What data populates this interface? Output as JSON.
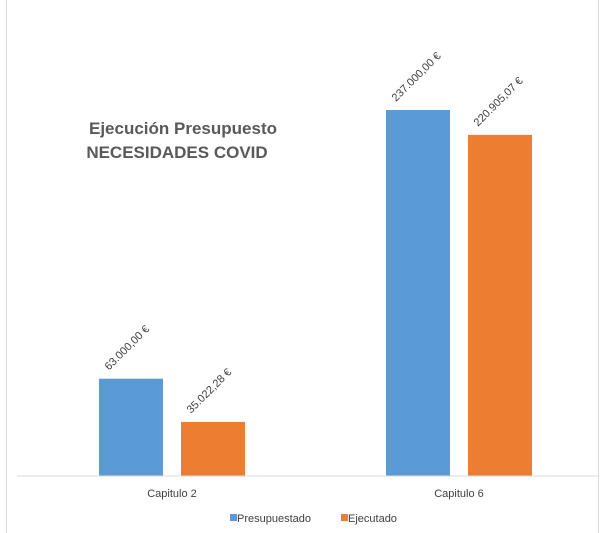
{
  "chart_data": {
    "type": "bar",
    "title_lines": [
      "Ejecución Presupuesto",
      "NECESIDADES COVID"
    ],
    "categories": [
      "Capitulo 2",
      "Capitulo 6"
    ],
    "series": [
      {
        "name": "Presupuestado",
        "color": "#5b9bd5",
        "values": [
          63000.0,
          237000.0
        ],
        "labels": [
          "63.000,00 €",
          "237.000,00 €"
        ]
      },
      {
        "name": "Ejecutado",
        "color": "#ed7d31",
        "values": [
          35022.28,
          220905.07
        ],
        "labels": [
          "35.022,28 €",
          "220.905,07 €"
        ]
      }
    ],
    "ylim": [
      0,
      237000
    ],
    "grid": false,
    "legend_position": "bottom",
    "axis_color": "#d9d9d9"
  }
}
